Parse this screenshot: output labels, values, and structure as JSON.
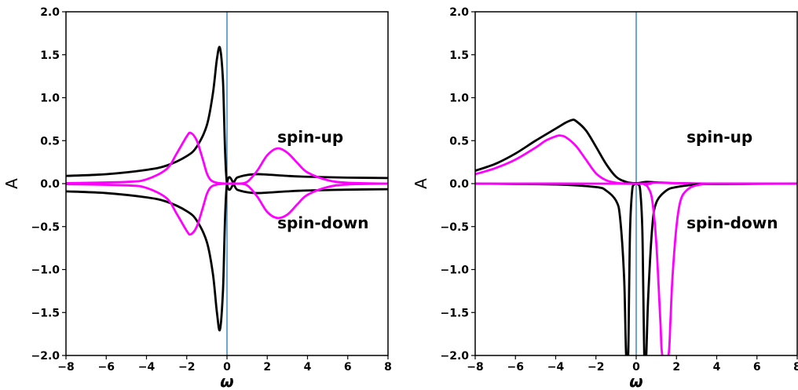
{
  "chart_data": [
    {
      "type": "line",
      "xlabel": "ω",
      "ylabel": "A",
      "xlim": [
        -8,
        8
      ],
      "ylim": [
        -2.0,
        2.0
      ],
      "xticks": [
        "−8",
        "−6",
        "−4",
        "−2",
        "0",
        "2",
        "4",
        "6",
        "8"
      ],
      "yticks": [
        "2.0",
        "1.5",
        "1.0",
        "0.5",
        "0.0",
        "−0.5",
        "−1.0",
        "−1.5",
        "−2.0"
      ],
      "vline_x": 0,
      "colors": {
        "black": "#000000",
        "magenta": "#ff00ff",
        "vline": "#1f77b4"
      },
      "annotations": [
        {
          "text": "spin-up",
          "x": 2.5,
          "y": 0.5
        },
        {
          "text": "spin-down",
          "x": 2.5,
          "y": -0.5
        }
      ],
      "series": [
        {
          "color": "#000000",
          "x": [
            -8,
            -6,
            -4,
            -3,
            -2,
            -1.5,
            -1,
            -0.7,
            -0.5,
            -0.35,
            -0.2,
            0,
            0.5,
            1,
            1.5,
            2,
            3,
            4,
            6,
            8
          ],
          "y": [
            0.09,
            0.11,
            0.16,
            0.21,
            0.32,
            0.43,
            0.68,
            1.05,
            1.45,
            1.58,
            1.2,
            0.0,
            0.07,
            0.1,
            0.11,
            0.105,
            0.09,
            0.08,
            0.07,
            0.065
          ]
        },
        {
          "color": "#000000",
          "x": [
            -8,
            -6,
            -4,
            -3,
            -2,
            -1.5,
            -1,
            -0.7,
            -0.5,
            -0.35,
            -0.2,
            0,
            0.5,
            1,
            1.5,
            2,
            3,
            4,
            6,
            8
          ],
          "y": [
            -0.09,
            -0.11,
            -0.16,
            -0.21,
            -0.32,
            -0.43,
            -0.68,
            -1.05,
            -1.5,
            -1.7,
            -1.25,
            0.0,
            -0.07,
            -0.1,
            -0.11,
            -0.105,
            -0.09,
            -0.08,
            -0.07,
            -0.065
          ]
        },
        {
          "color": "#ff00ff",
          "x": [
            -8,
            -5,
            -4,
            -3,
            -2.5,
            -2,
            -1.8,
            -1.5,
            -1.2,
            -1,
            -0.8,
            -0.5,
            0,
            0.5,
            1,
            1.5,
            2,
            2.5,
            3,
            3.5,
            4,
            5,
            6,
            8
          ],
          "y": [
            0.005,
            0.02,
            0.05,
            0.17,
            0.35,
            0.55,
            0.59,
            0.5,
            0.28,
            0.12,
            0.04,
            0.01,
            0.0,
            0.0,
            0.02,
            0.15,
            0.33,
            0.41,
            0.36,
            0.24,
            0.13,
            0.04,
            0.01,
            0.0
          ]
        },
        {
          "color": "#ff00ff",
          "x": [
            -8,
            -5,
            -4,
            -3,
            -2.5,
            -2,
            -1.8,
            -1.5,
            -1.2,
            -1,
            -0.8,
            -0.5,
            0,
            0.5,
            1,
            1.5,
            2,
            2.5,
            3,
            3.5,
            4,
            5,
            6,
            8
          ],
          "y": [
            -0.005,
            -0.02,
            -0.05,
            -0.17,
            -0.35,
            -0.55,
            -0.59,
            -0.5,
            -0.28,
            -0.12,
            -0.04,
            -0.01,
            0.0,
            0.0,
            -0.02,
            -0.15,
            -0.33,
            -0.4,
            -0.36,
            -0.24,
            -0.13,
            -0.04,
            -0.01,
            0.0
          ]
        }
      ]
    },
    {
      "type": "line",
      "xlabel": "ω",
      "ylabel": "A",
      "xlim": [
        -8,
        8
      ],
      "ylim": [
        -2.0,
        2.0
      ],
      "xticks": [
        "−8",
        "−6",
        "−4",
        "−2",
        "0",
        "2",
        "4",
        "6",
        "8"
      ],
      "yticks": [
        "2.0",
        "1.5",
        "1.0",
        "0.5",
        "0.0",
        "−0.5",
        "−1.0",
        "−1.5",
        "−2.0"
      ],
      "vline_x": 0,
      "colors": {
        "black": "#000000",
        "magenta": "#ff00ff",
        "vline": "#1f77b4"
      },
      "annotations": [
        {
          "text": "spin-up",
          "x": 2.5,
          "y": 0.5
        },
        {
          "text": "spin-down",
          "x": 2.5,
          "y": -0.5
        }
      ],
      "series": [
        {
          "color": "#000000",
          "x": [
            -8,
            -7,
            -6,
            -5,
            -4,
            -3.5,
            -3.2,
            -3,
            -2.5,
            -2,
            -1.5,
            -1,
            -0.5,
            0,
            0.5,
            1,
            2,
            4,
            8
          ],
          "y": [
            0.15,
            0.23,
            0.35,
            0.5,
            0.64,
            0.71,
            0.74,
            0.73,
            0.62,
            0.43,
            0.23,
            0.08,
            0.02,
            0.005,
            0.02,
            0.015,
            0.005,
            0.0,
            0.0
          ]
        },
        {
          "color": "#ff00ff",
          "x": [
            -8,
            -7,
            -6,
            -5,
            -4.5,
            -4,
            -3.8,
            -3.5,
            -3,
            -2.5,
            -2,
            -1.5,
            -1,
            -0.5,
            0,
            0.5,
            1,
            2,
            4,
            8
          ],
          "y": [
            0.11,
            0.18,
            0.28,
            0.42,
            0.5,
            0.55,
            0.56,
            0.54,
            0.44,
            0.28,
            0.12,
            0.04,
            0.01,
            0.0,
            0.0,
            0.0,
            0.01,
            0.005,
            0.0,
            0.0
          ]
        },
        {
          "color": "#000000",
          "x": [
            -8,
            -4,
            -2,
            -1.5,
            -1,
            -0.8,
            -0.6,
            -0.5,
            -0.4,
            -0.35,
            -0.3,
            -0.2,
            -0.1,
            0,
            0.1,
            0.2,
            0.3,
            0.35,
            0.4,
            0.45,
            0.5,
            0.6,
            0.8,
            1,
            1.5,
            2,
            3,
            4,
            8
          ],
          "y": [
            0.0,
            -0.01,
            -0.04,
            -0.08,
            -0.2,
            -0.4,
            -1.1,
            -2.0,
            -2.0,
            -1.2,
            -0.5,
            -0.08,
            -0.01,
            0.0,
            -0.01,
            -0.08,
            -0.5,
            -1.2,
            -2.0,
            -2.0,
            -2.0,
            -1.3,
            -0.5,
            -0.22,
            -0.08,
            -0.04,
            -0.01,
            -0.005,
            0.0
          ]
        },
        {
          "color": "#ff00ff",
          "x": [
            -8,
            0,
            0.4,
            0.6,
            0.8,
            1.0,
            1.2,
            1.3,
            1.6,
            1.7,
            1.8,
            2.0,
            2.2,
            2.5,
            3,
            4,
            8
          ],
          "y": [
            0.0,
            0.0,
            -0.01,
            -0.05,
            -0.2,
            -0.7,
            -1.6,
            -2.0,
            -2.0,
            -1.6,
            -1.1,
            -0.5,
            -0.2,
            -0.08,
            -0.02,
            0.0,
            0.0
          ]
        }
      ]
    }
  ]
}
